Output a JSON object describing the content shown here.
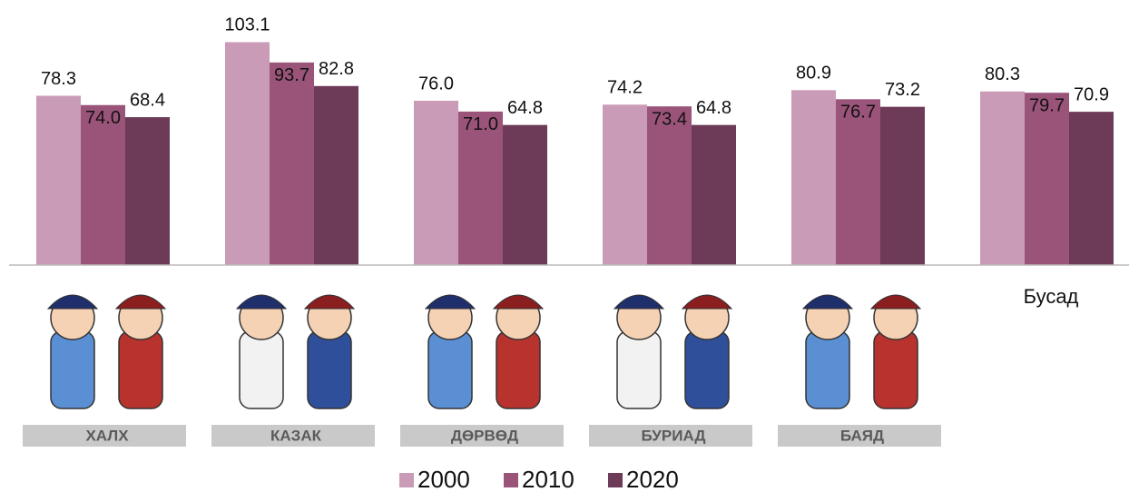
{
  "chart_data": {
    "type": "bar",
    "categories": [
      "ХАЛХ",
      "КАЗАК",
      "ДӨРВӨД",
      "БУРИАД",
      "БАЯД",
      "Бусад"
    ],
    "series": [
      {
        "name": "2000",
        "color": "#c99bb6",
        "values": [
          78.3,
          103.1,
          76.0,
          74.2,
          80.9,
          80.3
        ],
        "value_labels": [
          "78.3",
          "103.1",
          "76.0",
          "74.2",
          "80.9",
          "80.3"
        ]
      },
      {
        "name": "2010",
        "color": "#9a5479",
        "values": [
          74.0,
          93.7,
          71.0,
          73.4,
          76.7,
          79.7
        ],
        "value_labels": [
          "74.0",
          "93.7",
          "71.0",
          "73.4",
          "76.7",
          "79.7"
        ]
      },
      {
        "name": "2020",
        "color": "#6d3a57",
        "values": [
          68.4,
          82.8,
          64.8,
          64.8,
          73.2,
          70.9
        ],
        "value_labels": [
          "68.4",
          "82.8",
          "64.8",
          "64.8",
          "73.2",
          "70.9"
        ]
      }
    ],
    "ylim": [
      0,
      110
    ]
  }
}
